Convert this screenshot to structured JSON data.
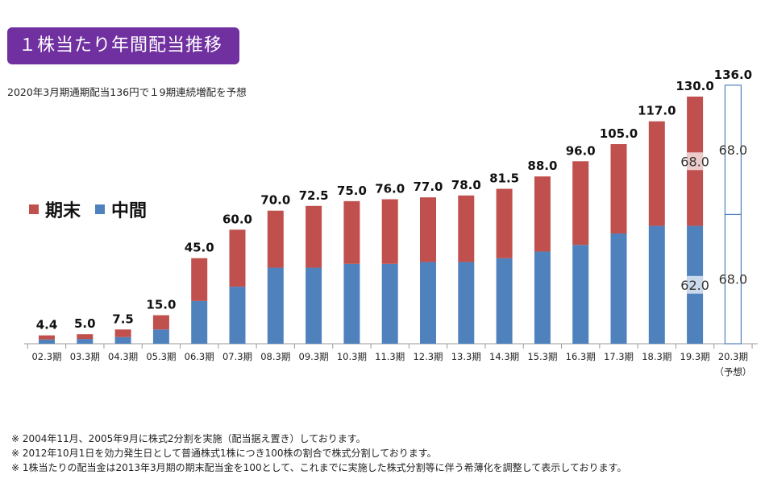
{
  "header": {
    "title": "１株当たり年間配当推移",
    "subtitle": "2020年3月期通期配当136円で１9期連続増配を予想"
  },
  "legend": {
    "items": [
      {
        "label": "期末",
        "color": "#c0504d"
      },
      {
        "label": "中間",
        "color": "#4f81bd"
      }
    ]
  },
  "chart_data": {
    "type": "bar",
    "stacked": true,
    "categories": [
      "02.3期",
      "03.3期",
      "04.3期",
      "05.3期",
      "06.3期",
      "07.3期",
      "08.3期",
      "09.3期",
      "10.3期",
      "11.3期",
      "12.3期",
      "13.3期",
      "14.3期",
      "15.3期",
      "16.3期",
      "17.3期",
      "18.3期",
      "19.3期",
      "20.3期"
    ],
    "forecast_note": "（予想）",
    "series": [
      {
        "name": "中間",
        "color": "#4f81bd",
        "values": [
          2.2,
          2.5,
          3.5,
          7.5,
          22.5,
          30,
          40,
          40,
          42,
          42,
          43,
          43,
          45,
          48.5,
          52,
          58,
          62,
          62,
          68
        ]
      },
      {
        "name": "期末",
        "color": "#c0504d",
        "values": [
          2.2,
          2.5,
          4.0,
          7.5,
          22.5,
          30,
          30,
          32.5,
          33,
          34,
          34,
          35,
          36.5,
          39.5,
          44,
          47,
          55,
          68,
          68
        ]
      }
    ],
    "totals": [
      "4.4",
      "5.0",
      "7.5",
      "15.0",
      "45.0",
      "60.0",
      "70.0",
      "72.5",
      "75.0",
      "76.0",
      "77.0",
      "78.0",
      "81.5",
      "88.0",
      "96.0",
      "105.0",
      "117.0",
      "130.0",
      "136.0"
    ],
    "segment_labels": [
      {
        "index": 17,
        "series": "期末",
        "text": "68.0"
      },
      {
        "index": 17,
        "series": "中間",
        "text": "62.0"
      },
      {
        "index": 18,
        "series": "期末",
        "text": "68.0"
      },
      {
        "index": 18,
        "series": "中間",
        "text": "68.0"
      }
    ],
    "ylim": [
      0,
      140
    ],
    "grid": false,
    "legend_position": "left"
  },
  "footnotes": [
    "※ 2004年11月、2005年9月に株式2分割を実施（配当据え置き）しております。",
    "※ 2012年10月1日を効力発生日として普通株式1株につき100株の割合で株式分割しております。",
    "※ 1株当たりの配当金は2013年3月期の期末配当金を100として、これまでに実施した株式分割等に伴う希薄化を調整して表示しております。"
  ]
}
